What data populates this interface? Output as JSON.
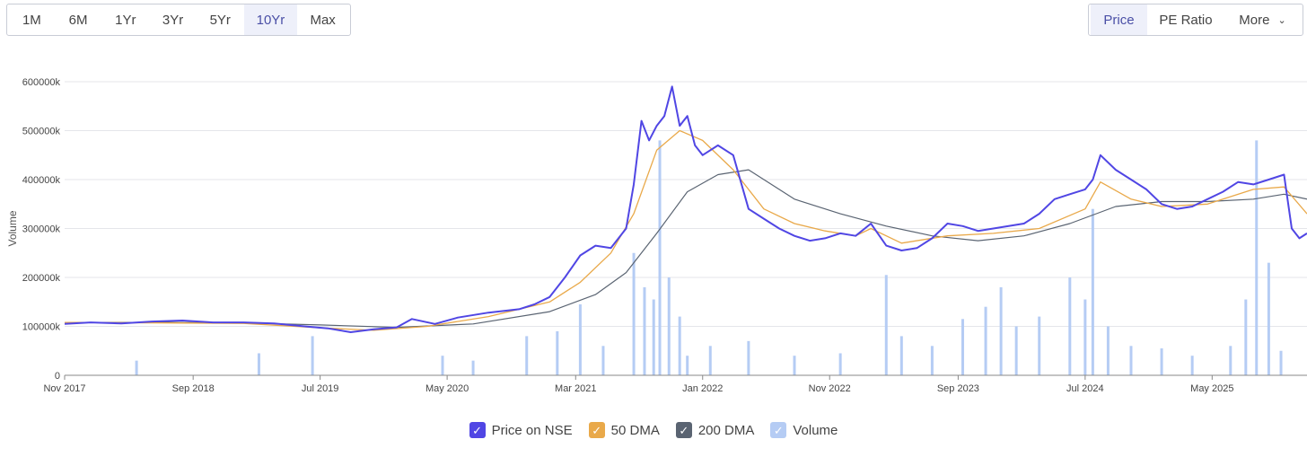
{
  "range_buttons": [
    "1M",
    "6M",
    "1Yr",
    "3Yr",
    "5Yr",
    "10Yr",
    "Max"
  ],
  "active_range": "10Yr",
  "view_buttons": [
    "Price",
    "PE Ratio",
    "More"
  ],
  "active_view": "Price",
  "legend": [
    {
      "label": "Price on NSE",
      "color": "#5046e4",
      "check": "✓"
    },
    {
      "label": "50 DMA",
      "color": "#e9a94a",
      "check": "✓"
    },
    {
      "label": "200 DMA",
      "color": "#5a6472",
      "check": "✓"
    },
    {
      "label": "Volume",
      "color": "#b5ccf4",
      "check": "✓"
    }
  ],
  "chart_data": {
    "type": "line",
    "ylabel": "Volume",
    "ylim": [
      0,
      600000
    ],
    "yticks": [
      0,
      100000,
      200000,
      300000,
      400000,
      500000,
      600000
    ],
    "ytick_labels": [
      "0",
      "100000k",
      "200000k",
      "300000k",
      "400000k",
      "500000k",
      "600000k"
    ],
    "xlim": [
      2017.83,
      2025.95
    ],
    "xticks": [
      2017.83,
      2018.67,
      2019.5,
      2020.33,
      2021.17,
      2022.0,
      2022.83,
      2023.67,
      2024.5,
      2025.33
    ],
    "xtick_labels": [
      "Nov 2017",
      "Sep 2018",
      "Jul 2019",
      "May 2020",
      "Mar 2021",
      "Jan 2022",
      "Nov 2022",
      "Sep 2023",
      "Jul 2024",
      "May 2025"
    ],
    "series": [
      {
        "name": "Price on NSE",
        "x": [
          2017.83,
          2018.0,
          2018.2,
          2018.4,
          2018.6,
          2018.8,
          2019.0,
          2019.2,
          2019.4,
          2019.55,
          2019.7,
          2019.85,
          2020.0,
          2020.1,
          2020.25,
          2020.4,
          2020.6,
          2020.8,
          2020.9,
          2021.0,
          2021.1,
          2021.2,
          2021.3,
          2021.4,
          2021.5,
          2021.55,
          2021.6,
          2021.65,
          2021.7,
          2021.75,
          2021.8,
          2021.85,
          2021.9,
          2021.95,
          2022.0,
          2022.1,
          2022.2,
          2022.3,
          2022.4,
          2022.5,
          2022.6,
          2022.7,
          2022.8,
          2022.9,
          2023.0,
          2023.1,
          2023.2,
          2023.3,
          2023.4,
          2023.5,
          2023.6,
          2023.7,
          2023.8,
          2023.9,
          2024.0,
          2024.1,
          2024.2,
          2024.3,
          2024.4,
          2024.5,
          2024.55,
          2024.6,
          2024.7,
          2024.8,
          2024.9,
          2025.0,
          2025.1,
          2025.2,
          2025.3,
          2025.4,
          2025.5,
          2025.6,
          2025.7,
          2025.8,
          2025.85,
          2025.9,
          2025.95
        ],
        "values": [
          105000,
          108000,
          106000,
          110000,
          112000,
          108000,
          108000,
          106000,
          100000,
          96000,
          88000,
          94000,
          98000,
          115000,
          105000,
          118000,
          128000,
          135000,
          145000,
          160000,
          200000,
          245000,
          265000,
          260000,
          300000,
          390000,
          520000,
          480000,
          510000,
          530000,
          590000,
          510000,
          530000,
          470000,
          450000,
          470000,
          450000,
          340000,
          320000,
          300000,
          285000,
          275000,
          280000,
          290000,
          285000,
          310000,
          265000,
          255000,
          260000,
          280000,
          310000,
          305000,
          295000,
          300000,
          305000,
          310000,
          330000,
          360000,
          370000,
          380000,
          400000,
          450000,
          420000,
          400000,
          380000,
          350000,
          340000,
          345000,
          360000,
          375000,
          395000,
          390000,
          400000,
          410000,
          300000,
          280000,
          290000
        ]
      },
      {
        "name": "50 DMA",
        "x": [
          2017.83,
          2018.5,
          2019.0,
          2019.5,
          2019.85,
          2020.2,
          2020.6,
          2021.0,
          2021.2,
          2021.4,
          2021.55,
          2021.7,
          2021.85,
          2022.0,
          2022.2,
          2022.4,
          2022.6,
          2022.8,
          2023.0,
          2023.1,
          2023.3,
          2023.6,
          2023.9,
          2024.2,
          2024.5,
          2024.6,
          2024.8,
          2025.0,
          2025.3,
          2025.6,
          2025.8,
          2025.95
        ],
        "values": [
          108000,
          107000,
          106000,
          97000,
          92000,
          100000,
          120000,
          150000,
          190000,
          250000,
          330000,
          460000,
          500000,
          480000,
          420000,
          340000,
          310000,
          295000,
          285000,
          300000,
          270000,
          285000,
          290000,
          300000,
          340000,
          395000,
          360000,
          345000,
          350000,
          380000,
          385000,
          330000
        ]
      },
      {
        "name": "200 DMA",
        "x": [
          2017.83,
          2018.5,
          2019.0,
          2019.5,
          2020.0,
          2020.5,
          2021.0,
          2021.3,
          2021.5,
          2021.7,
          2021.9,
          2022.1,
          2022.3,
          2022.6,
          2022.9,
          2023.2,
          2023.5,
          2023.8,
          2024.1,
          2024.4,
          2024.7,
          2025.0,
          2025.3,
          2025.6,
          2025.8,
          2025.95
        ],
        "values": [
          108000,
          108000,
          107000,
          103000,
          98000,
          105000,
          130000,
          165000,
          210000,
          290000,
          375000,
          410000,
          420000,
          360000,
          330000,
          305000,
          285000,
          275000,
          285000,
          310000,
          345000,
          355000,
          355000,
          360000,
          370000,
          360000
        ]
      },
      {
        "name": "Volume",
        "type": "bar",
        "x": [
          2018.3,
          2019.1,
          2019.45,
          2020.3,
          2020.5,
          2020.85,
          2021.05,
          2021.2,
          2021.35,
          2021.55,
          2021.62,
          2021.68,
          2021.72,
          2021.78,
          2021.85,
          2021.9,
          2022.05,
          2022.3,
          2022.6,
          2022.9,
          2023.2,
          2023.3,
          2023.5,
          2023.7,
          2023.85,
          2023.95,
          2024.05,
          2024.2,
          2024.4,
          2024.5,
          2024.55,
          2024.65,
          2024.8,
          2025.0,
          2025.2,
          2025.45,
          2025.55,
          2025.62,
          2025.7,
          2025.78
        ],
        "values": [
          30000,
          45000,
          80000,
          40000,
          30000,
          80000,
          90000,
          145000,
          60000,
          250000,
          180000,
          155000,
          480000,
          200000,
          120000,
          40000,
          60000,
          70000,
          40000,
          45000,
          205000,
          80000,
          60000,
          115000,
          140000,
          180000,
          100000,
          120000,
          200000,
          155000,
          340000,
          100000,
          60000,
          55000,
          40000,
          60000,
          155000,
          480000,
          230000,
          50000
        ]
      }
    ]
  }
}
